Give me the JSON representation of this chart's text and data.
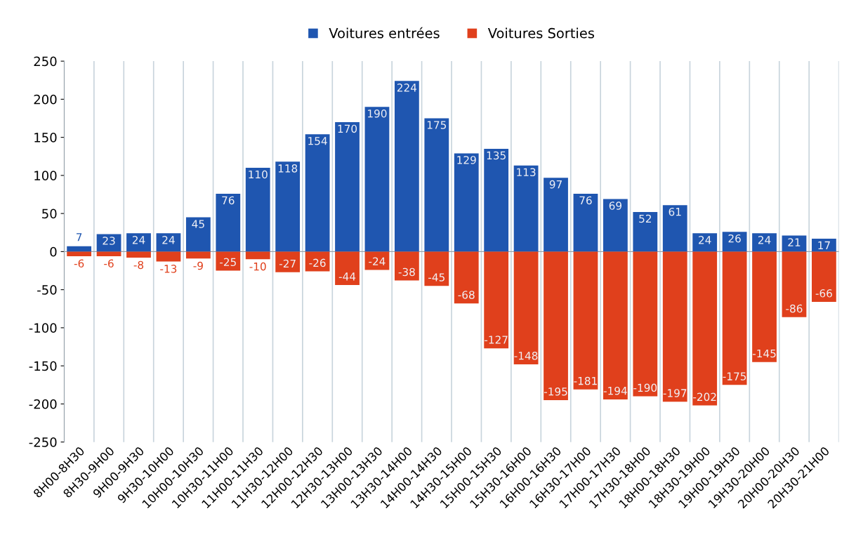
{
  "chart_data": {
    "type": "bar",
    "categories": [
      "8H00-8H30",
      "8H30-9H00",
      "9H00-9H30",
      "9H30-10H00",
      "10H00-10H30",
      "10H30-11H00",
      "11H00-11H30",
      "11H30-12H00",
      "12H00-12H30",
      "12H30-13H00",
      "13H00-13H30",
      "13H30-14H00",
      "14H00-14H30",
      "14H30-15H00",
      "15H00-15H30",
      "15H30-16H00",
      "16H00-16H30",
      "16H30-17H00",
      "17H00-17H30",
      "17H30-18H00",
      "18H00-18H30",
      "18H30-19H00",
      "19H00-19H30",
      "19H30-20H00",
      "20H00-20H30",
      "20H30-21H00"
    ],
    "series": [
      {
        "name": "Voitures entrées",
        "color": "#1f56b0",
        "values": [
          7,
          23,
          24,
          24,
          45,
          76,
          110,
          118,
          154,
          170,
          190,
          224,
          175,
          129,
          135,
          113,
          97,
          76,
          69,
          52,
          61,
          24,
          26,
          24,
          21,
          17
        ]
      },
      {
        "name": "Voitures Sorties",
        "color": "#e0401c",
        "values": [
          -6,
          -6,
          -8,
          -13,
          -9,
          -25,
          -10,
          -27,
          -26,
          -44,
          -24,
          -38,
          -45,
          -68,
          -127,
          -148,
          -195,
          -181,
          -194,
          -190,
          -197,
          -202,
          -175,
          -145,
          -86,
          -66
        ]
      }
    ],
    "ylim": [
      -250,
      250
    ],
    "yticks": [
      -250,
      -200,
      -150,
      -100,
      -50,
      0,
      50,
      100,
      150,
      200,
      250
    ],
    "grid": "x",
    "stacked": true,
    "legend": "top",
    "data_labels": true
  }
}
